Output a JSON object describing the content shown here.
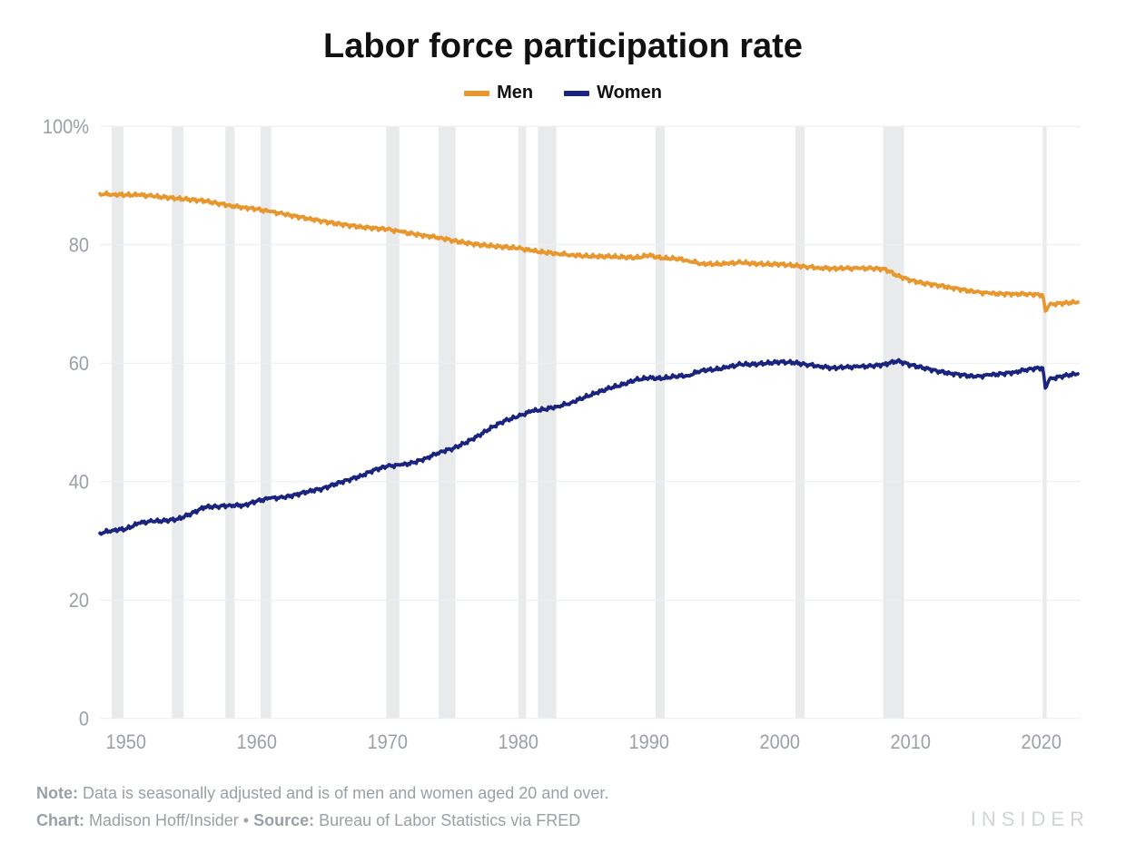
{
  "title": "Labor force participation rate",
  "legend": [
    {
      "label": "Men",
      "color": "#e8962e"
    },
    {
      "label": "Women",
      "color": "#1a237e"
    }
  ],
  "chart": {
    "type": "line",
    "background_color": "#ffffff",
    "grid_color": "#eceff1",
    "recession_color": "#e8eaeb",
    "axis_label_color": "#9aa0a6",
    "axis_fontsize": 20,
    "line_width": 3.5,
    "xlim": [
      1948,
      2023
    ],
    "ylim": [
      0,
      100
    ],
    "x_ticks": [
      1950,
      1960,
      1970,
      1980,
      1990,
      2000,
      2010,
      2020
    ],
    "y_ticks": [
      0,
      20,
      40,
      60,
      80,
      100
    ],
    "y_tick_suffix_first_only": "%",
    "recessions": [
      [
        1948.9,
        1949.8
      ],
      [
        1953.5,
        1954.4
      ],
      [
        1957.6,
        1958.3
      ],
      [
        1960.3,
        1961.1
      ],
      [
        1969.9,
        1970.9
      ],
      [
        1973.9,
        1975.2
      ],
      [
        1980.0,
        1980.6
      ],
      [
        1981.5,
        1982.9
      ],
      [
        1990.5,
        1991.2
      ],
      [
        2001.2,
        2001.9
      ],
      [
        2007.9,
        2009.5
      ],
      [
        2020.1,
        2020.4
      ]
    ],
    "series": [
      {
        "name": "Men",
        "color": "#e8962e",
        "points": [
          [
            1948,
            88.6
          ],
          [
            1949,
            88.5
          ],
          [
            1950,
            88.4
          ],
          [
            1951,
            88.4
          ],
          [
            1952,
            88.2
          ],
          [
            1953,
            88.0
          ],
          [
            1954,
            87.8
          ],
          [
            1955,
            87.6
          ],
          [
            1956,
            87.4
          ],
          [
            1957,
            87.0
          ],
          [
            1958,
            86.6
          ],
          [
            1959,
            86.3
          ],
          [
            1960,
            86.0
          ],
          [
            1961,
            85.6
          ],
          [
            1962,
            85.2
          ],
          [
            1963,
            84.8
          ],
          [
            1964,
            84.4
          ],
          [
            1965,
            84.0
          ],
          [
            1966,
            83.6
          ],
          [
            1967,
            83.3
          ],
          [
            1968,
            83.0
          ],
          [
            1969,
            82.8
          ],
          [
            1970,
            82.6
          ],
          [
            1971,
            82.2
          ],
          [
            1972,
            81.8
          ],
          [
            1973,
            81.5
          ],
          [
            1974,
            81.2
          ],
          [
            1975,
            80.7
          ],
          [
            1976,
            80.3
          ],
          [
            1977,
            80.0
          ],
          [
            1978,
            79.8
          ],
          [
            1979,
            79.6
          ],
          [
            1980,
            79.4
          ],
          [
            1981,
            79.0
          ],
          [
            1982,
            78.7
          ],
          [
            1983,
            78.5
          ],
          [
            1984,
            78.3
          ],
          [
            1985,
            78.1
          ],
          [
            1986,
            78.0
          ],
          [
            1987,
            78.0
          ],
          [
            1988,
            77.9
          ],
          [
            1989,
            77.8
          ],
          [
            1990,
            78.2
          ],
          [
            1991,
            77.7
          ],
          [
            1992,
            77.7
          ],
          [
            1993,
            77.3
          ],
          [
            1994,
            76.8
          ],
          [
            1995,
            76.7
          ],
          [
            1996,
            76.8
          ],
          [
            1997,
            77.0
          ],
          [
            1998,
            76.8
          ],
          [
            1999,
            76.7
          ],
          [
            2000,
            76.7
          ],
          [
            2001,
            76.5
          ],
          [
            2002,
            76.3
          ],
          [
            2003,
            76.1
          ],
          [
            2004,
            76.0
          ],
          [
            2005,
            76.0
          ],
          [
            2006,
            76.0
          ],
          [
            2007,
            76.0
          ],
          [
            2008,
            75.9
          ],
          [
            2009,
            74.8
          ],
          [
            2010,
            74.0
          ],
          [
            2011,
            73.5
          ],
          [
            2012,
            73.2
          ],
          [
            2013,
            72.8
          ],
          [
            2014,
            72.4
          ],
          [
            2015,
            72.0
          ],
          [
            2016,
            71.8
          ],
          [
            2017,
            71.7
          ],
          [
            2018,
            71.7
          ],
          [
            2019,
            71.7
          ],
          [
            2020.1,
            71.5
          ],
          [
            2020.3,
            68.8
          ],
          [
            2020.6,
            69.8
          ],
          [
            2021,
            70.0
          ],
          [
            2022,
            70.2
          ],
          [
            2022.8,
            70.3
          ]
        ]
      },
      {
        "name": "Women",
        "color": "#1a237e",
        "points": [
          [
            1948,
            31.3
          ],
          [
            1949,
            31.8
          ],
          [
            1950,
            32.0
          ],
          [
            1951,
            33.0
          ],
          [
            1952,
            33.3
          ],
          [
            1953,
            33.4
          ],
          [
            1954,
            33.7
          ],
          [
            1955,
            34.6
          ],
          [
            1956,
            35.7
          ],
          [
            1957,
            35.8
          ],
          [
            1958,
            36.0
          ],
          [
            1959,
            36.0
          ],
          [
            1960,
            36.7
          ],
          [
            1961,
            37.2
          ],
          [
            1962,
            37.3
          ],
          [
            1963,
            37.8
          ],
          [
            1964,
            38.4
          ],
          [
            1965,
            38.8
          ],
          [
            1966,
            39.6
          ],
          [
            1967,
            40.3
          ],
          [
            1968,
            41.0
          ],
          [
            1969,
            42.0
          ],
          [
            1970,
            42.6
          ],
          [
            1971,
            42.8
          ],
          [
            1972,
            43.2
          ],
          [
            1973,
            44.0
          ],
          [
            1974,
            45.0
          ],
          [
            1975,
            45.6
          ],
          [
            1976,
            46.6
          ],
          [
            1977,
            47.8
          ],
          [
            1978,
            49.2
          ],
          [
            1979,
            50.3
          ],
          [
            1980,
            51.0
          ],
          [
            1981,
            51.9
          ],
          [
            1982,
            52.2
          ],
          [
            1983,
            52.7
          ],
          [
            1984,
            53.3
          ],
          [
            1985,
            54.2
          ],
          [
            1986,
            55.0
          ],
          [
            1987,
            55.8
          ],
          [
            1988,
            56.4
          ],
          [
            1989,
            57.2
          ],
          [
            1990,
            57.5
          ],
          [
            1991,
            57.4
          ],
          [
            1992,
            57.8
          ],
          [
            1993,
            57.9
          ],
          [
            1994,
            58.8
          ],
          [
            1995,
            58.9
          ],
          [
            1996,
            59.3
          ],
          [
            1997,
            59.8
          ],
          [
            1998,
            59.8
          ],
          [
            1999,
            60.0
          ],
          [
            2000,
            60.2
          ],
          [
            2001,
            60.1
          ],
          [
            2002,
            59.8
          ],
          [
            2003,
            59.5
          ],
          [
            2004,
            59.2
          ],
          [
            2005,
            59.3
          ],
          [
            2006,
            59.4
          ],
          [
            2007,
            59.5
          ],
          [
            2008,
            59.8
          ],
          [
            2009,
            60.4
          ],
          [
            2010,
            59.7
          ],
          [
            2011,
            59.2
          ],
          [
            2012,
            58.7
          ],
          [
            2013,
            58.3
          ],
          [
            2014,
            58.0
          ],
          [
            2015,
            57.7
          ],
          [
            2016,
            58.0
          ],
          [
            2017,
            58.2
          ],
          [
            2018,
            58.5
          ],
          [
            2019,
            59.0
          ],
          [
            2020.1,
            59.2
          ],
          [
            2020.3,
            55.8
          ],
          [
            2020.6,
            57.2
          ],
          [
            2021,
            57.5
          ],
          [
            2022,
            58.0
          ],
          [
            2022.8,
            58.2
          ]
        ]
      }
    ]
  },
  "footer": {
    "note_label": "Note:",
    "note_text": " Data is seasonally adjusted and is of men and women aged 20 and over.",
    "chart_label": "Chart:",
    "chart_text": " Madison Hoff/Insider ",
    "sep": "•",
    "source_label": " Source:",
    "source_text": " Bureau of Labor Statistics via FRED"
  },
  "brand": "INSIDER"
}
